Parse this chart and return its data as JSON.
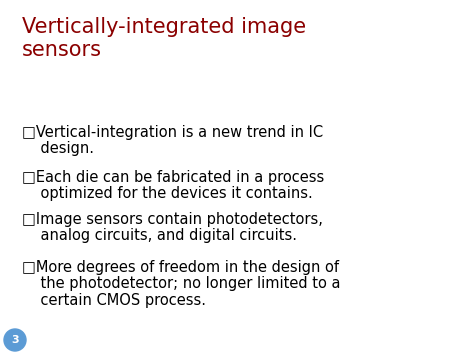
{
  "title_line1": "Vertically-integrated image",
  "title_line2": "sensors",
  "title_color": "#8B0000",
  "background_color": "#FFFFFF",
  "slide_bg": "#E8E8E8",
  "bullet_symbol": "□",
  "bullets": [
    [
      "Vertical-integration is a new trend in IC",
      "    design."
    ],
    [
      "Each die can be fabricated in a process",
      "    optimized for the devices it contains."
    ],
    [
      "Image sensors contain photodetectors,",
      "    analog circuits, and digital circuits."
    ],
    [
      "More degrees of freedom in the design of",
      "    the photodetector; no longer limited to a",
      "    certain CMOS process."
    ]
  ],
  "bullet_color": "#000000",
  "page_number": "3",
  "page_circle_color": "#5B9BD5",
  "page_number_color": "#FFFFFF",
  "border_color": "#BBBBBB",
  "title_fontsize": 15,
  "bullet_fontsize": 10.5
}
